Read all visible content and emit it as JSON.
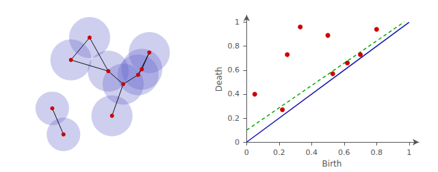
{
  "chart_data": [
    {
      "type": "network",
      "x": [
        0.28,
        0.18,
        0.38,
        0.46,
        0.54,
        0.6,
        0.56,
        0.4,
        0.08,
        0.14
      ],
      "y": [
        0.8,
        0.68,
        0.62,
        0.55,
        0.6,
        0.72,
        0.63,
        0.38,
        0.42,
        0.28
      ],
      "series": [
        {
          "type": "circle",
          "color": "#6666cc",
          "radius": [
            0.11,
            0.11,
            0.11,
            0.11,
            0.11,
            0.11,
            0.11,
            0.11,
            0.09,
            0.09
          ]
        },
        {
          "type": "edge",
          "color": "#111111",
          "edges": [
            [
              0,
              1
            ],
            [
              0,
              2
            ],
            [
              1,
              2
            ],
            [
              2,
              3
            ],
            [
              3,
              4
            ],
            [
              3,
              7
            ],
            [
              4,
              5
            ],
            [
              4,
              6
            ],
            [
              5,
              6
            ],
            [
              8,
              9
            ]
          ]
        },
        {
          "type": "node",
          "color": "#cc0000"
        }
      ],
      "xlim": [
        -0.05,
        0.75
      ],
      "ylim": [
        0.1,
        0.98
      ],
      "tick_labels": false,
      "grid": false
    },
    {
      "type": "scatter",
      "xlabel": "Birth",
      "ylabel": "Death",
      "series": [
        {
          "type": "scatter",
          "color": "#cc0000",
          "x": [
            0.05,
            0.22,
            0.25,
            0.33,
            0.5,
            0.53,
            0.62,
            0.7,
            0.8
          ],
          "y": [
            0.4,
            0.27,
            0.73,
            0.96,
            0.89,
            0.57,
            0.66,
            0.73,
            0.94
          ]
        },
        {
          "type": "line",
          "color": "#1111aa",
          "line_style": "solid",
          "x": [
            0.0,
            1.0
          ],
          "y": [
            0.0,
            1.0
          ]
        },
        {
          "type": "line",
          "color": "#00aa00",
          "line_style": "dashed",
          "x": [
            0.0,
            0.97
          ],
          "y": [
            0.1,
            1.0021
          ]
        }
      ],
      "xlim": [
        -0.01,
        1.06
      ],
      "ylim": [
        -0.01,
        1.06
      ],
      "xticks": [
        0,
        0.2,
        0.4,
        0.6,
        0.8,
        1
      ],
      "yticks": [
        0,
        0.2,
        0.4,
        0.6,
        0.8,
        1
      ],
      "grid": false
    }
  ]
}
